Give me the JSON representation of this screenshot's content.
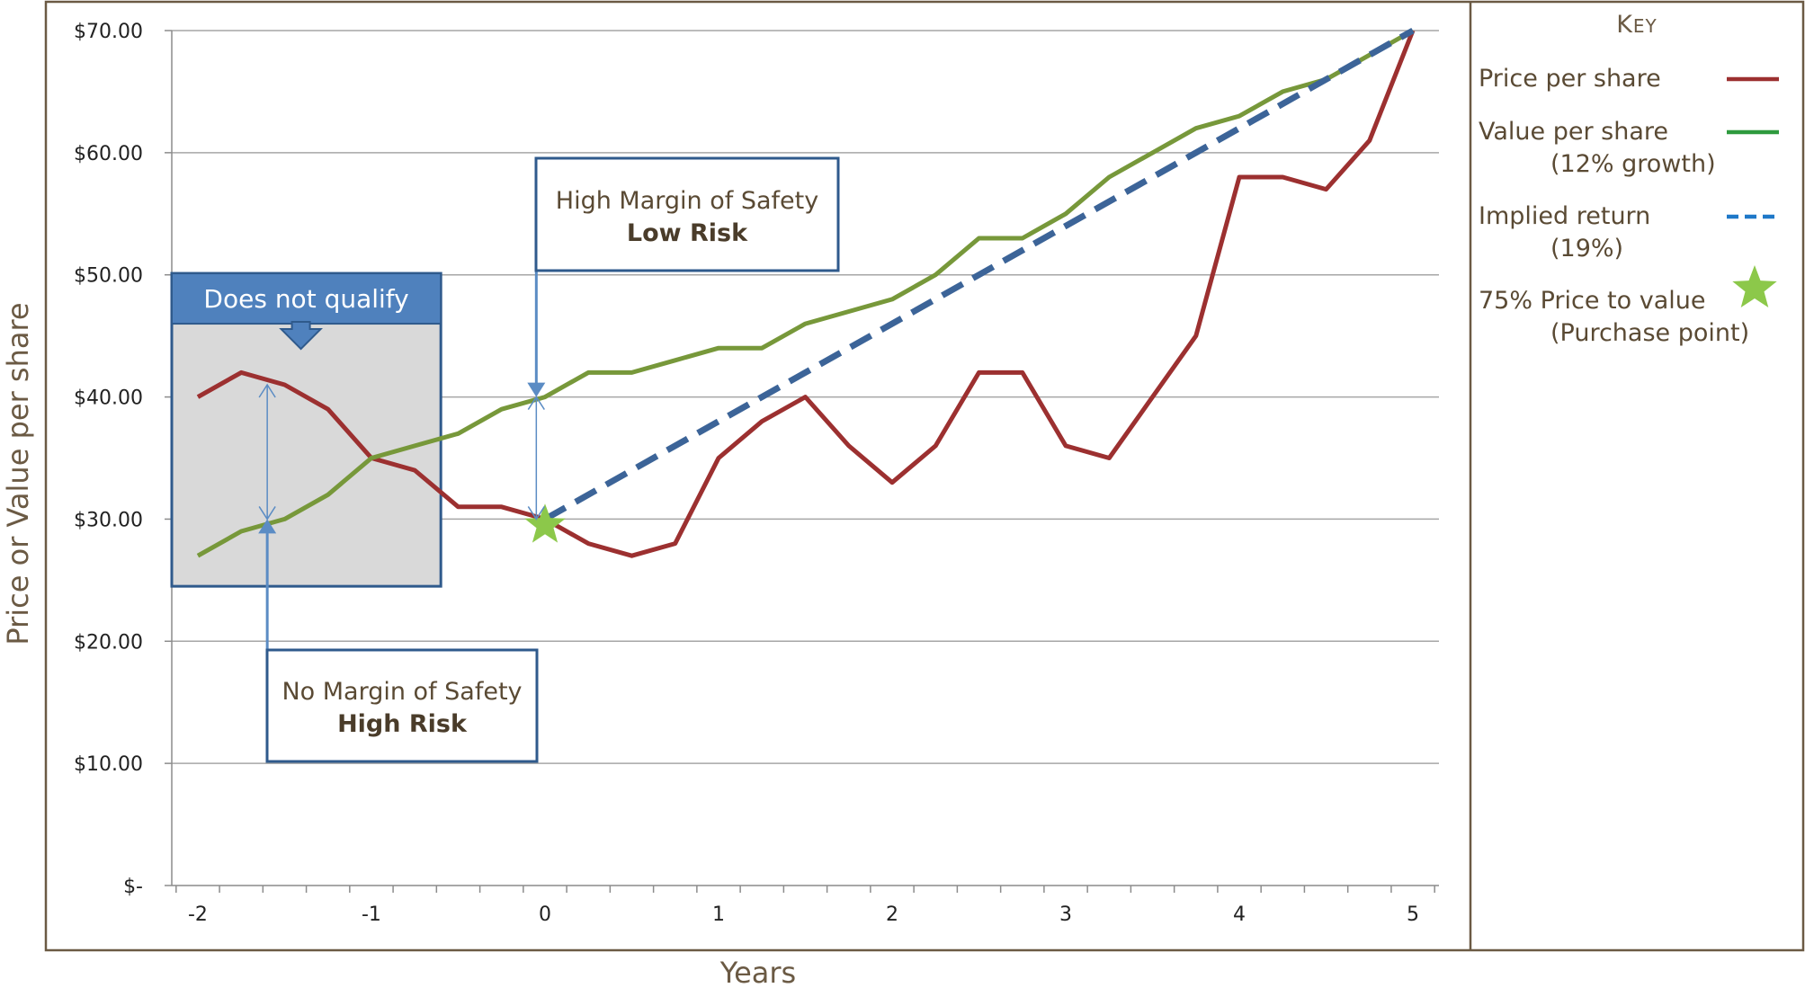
{
  "chart_data": {
    "type": "line",
    "xlabel": "Years",
    "ylabel": "Price or Value per share",
    "xlim": [
      -2.15,
      5.15
    ],
    "ylim": [
      0,
      70
    ],
    "x_ticks": [
      -2,
      -1,
      0,
      1,
      2,
      3,
      4,
      5
    ],
    "x_tick_labels": [
      "-2",
      "-1",
      "0",
      "1",
      "2",
      "3",
      "4",
      "5"
    ],
    "y_ticks": [
      0,
      10,
      20,
      30,
      40,
      50,
      60,
      70
    ],
    "y_tick_labels": [
      "$-",
      "$10.00",
      "$20.00",
      "$30.00",
      "$40.00",
      "$50.00",
      "$60.00",
      "$70.00"
    ],
    "grid": "horizontal",
    "legend_position": "right",
    "x": [
      -2,
      -1.75,
      -1.5,
      -1.25,
      -1,
      -0.75,
      -0.5,
      -0.25,
      0,
      0.25,
      0.5,
      0.75,
      1,
      1.25,
      1.5,
      1.75,
      2,
      2.25,
      2.5,
      2.75,
      3,
      3.25,
      3.5,
      3.75,
      4,
      4.25,
      4.5,
      4.75,
      5
    ],
    "series": [
      {
        "name": "Price per share",
        "color": "#9c3030",
        "style": "solid",
        "values": [
          40,
          42,
          41,
          39,
          35,
          34,
          31,
          31,
          30,
          28,
          27,
          28,
          35,
          38,
          40,
          36,
          33,
          36,
          42,
          42,
          36,
          35,
          40,
          45,
          58,
          58,
          57,
          61,
          70
        ]
      },
      {
        "name": "Value per share",
        "color": "#77983a",
        "style": "solid",
        "values": [
          27,
          29,
          30,
          32,
          35,
          36,
          37,
          39,
          40,
          42,
          42,
          43,
          44,
          44,
          46,
          47,
          48,
          50,
          53,
          53,
          55,
          58,
          60,
          62,
          63,
          65,
          66,
          68,
          70
        ]
      },
      {
        "name": "Implied return",
        "color": "#3c6498",
        "style": "dashed",
        "x": [
          0,
          5
        ],
        "values": [
          30,
          70
        ]
      }
    ],
    "markers": [
      {
        "name": "75% Price to value",
        "x": 0,
        "y": 29.5,
        "shape": "star",
        "color": "#8cc84a"
      }
    ],
    "legend": {
      "title": "Key",
      "entries": [
        {
          "lines": [
            "Price per share"
          ],
          "symbol": "solid-line",
          "color": "#9c3030"
        },
        {
          "lines": [
            "Value per share",
            "(12% growth)"
          ],
          "symbol": "solid-line",
          "color": "#2e9a3e"
        },
        {
          "lines": [
            "Implied return",
            "(19%)"
          ],
          "symbol": "dashed-line",
          "color": "#1f78c8"
        },
        {
          "lines": [
            "75% Price to value",
            "(Purchase point)"
          ],
          "symbol": "star",
          "color": "#8cc84a"
        }
      ]
    },
    "annotations": {
      "disqualify_banner": "Does not qualify",
      "disqualify_region": {
        "x_from": -2.15,
        "x_to": -0.6,
        "y_from": 24.5,
        "y_to": 46
      },
      "high_margin": {
        "line1": "High Margin of Safety",
        "line2": "Low Risk",
        "arrow_x": -0.05,
        "arrow_from": 40,
        "arrow_to": 30
      },
      "no_margin": {
        "line1": "No Margin of Safety",
        "line2": "High Risk",
        "arrow_x": -1.6,
        "arrow_from": 41,
        "arrow_to": 30
      }
    },
    "colors": {
      "frame": "#6b5a44",
      "grid": "#a6a6a6",
      "callout_border": "#2f5a8c",
      "banner_fill": "#4f81bd",
      "region_fill": "#d9d9d9",
      "arrow": "#5b8cc4"
    }
  }
}
